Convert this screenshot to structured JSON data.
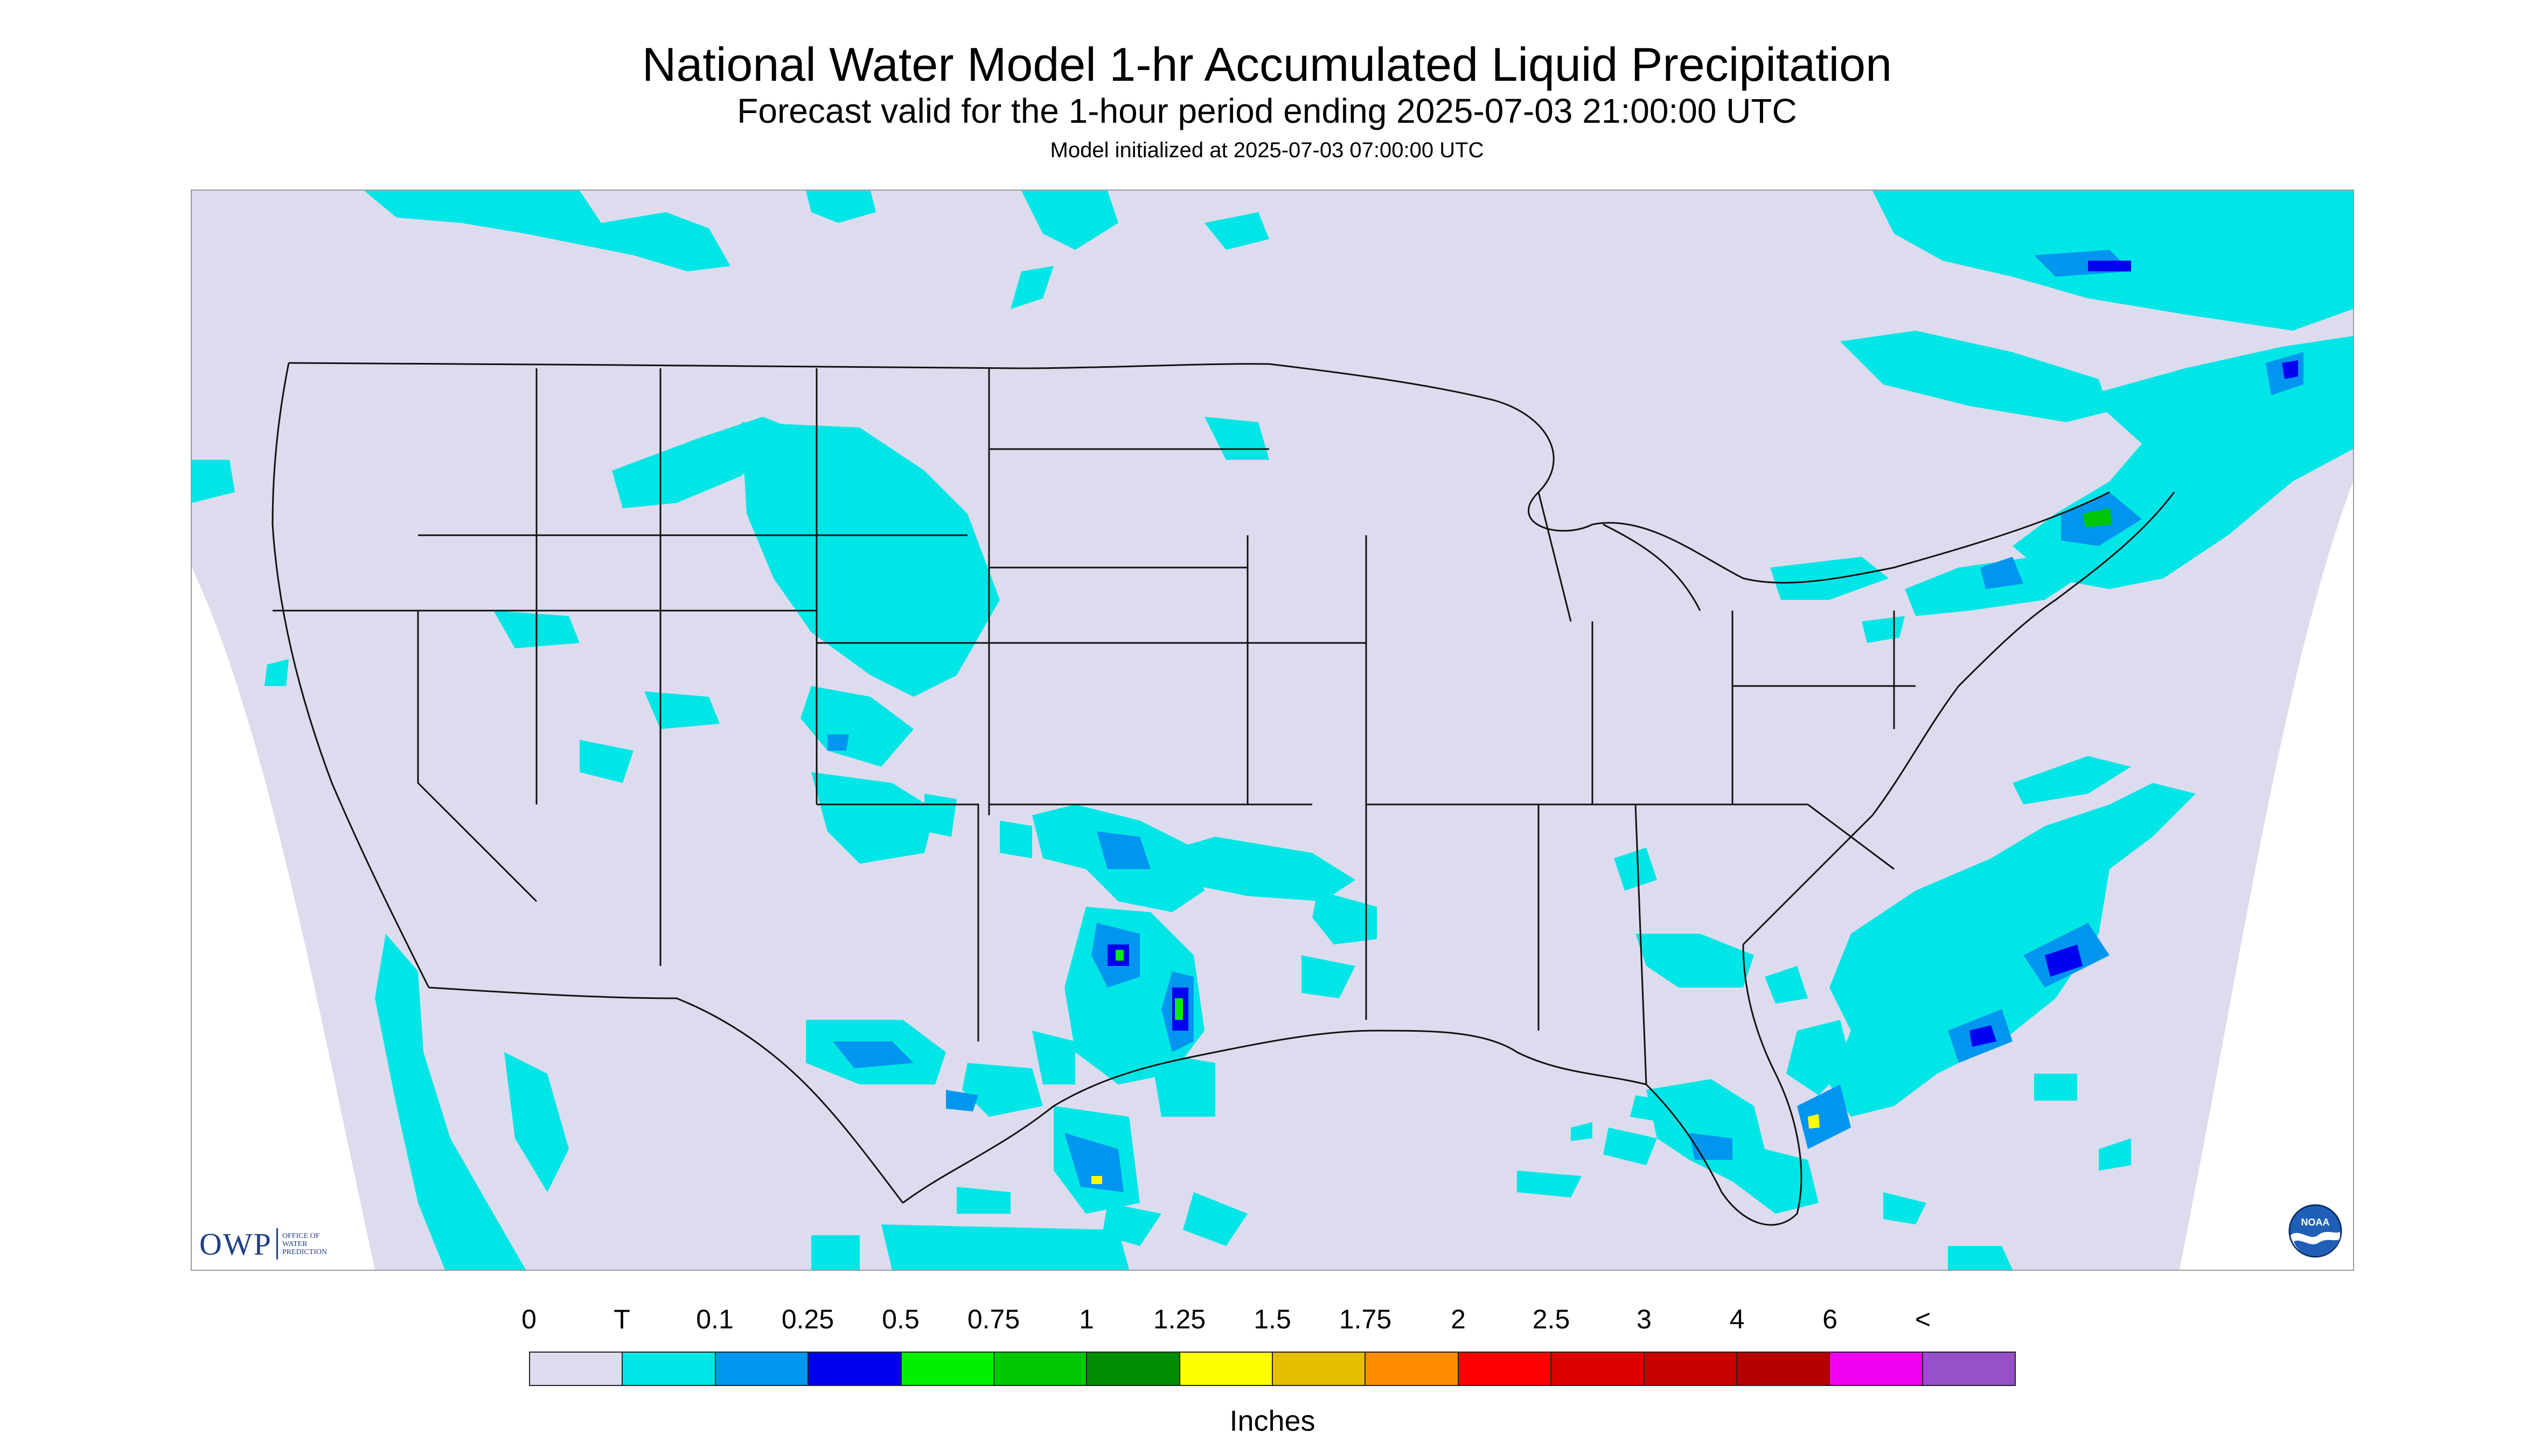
{
  "header": {
    "title": "National Water Model 1-hr Accumulated Liquid Precipitation",
    "subtitle": "Forecast valid for the 1-hour period ending 2025-07-03 21:00:00 UTC",
    "init": "Model initialized at 2025-07-03 07:00:00 UTC"
  },
  "colors": {
    "map_background": "#dcdcee",
    "outside_domain": "#ffffff",
    "boundary_lines": "#111111"
  },
  "logos": {
    "owp_text": "OWP",
    "owp_full": [
      "OFFICE OF",
      "WATER",
      "PREDICTION"
    ],
    "noaa_text": "NOAA"
  },
  "legend": {
    "units": "Inches",
    "labels": [
      "0",
      "T",
      "0.1",
      "0.25",
      "0.5",
      "0.75",
      "1",
      "1.25",
      "1.5",
      "1.75",
      "2",
      "2.5",
      "3",
      "4",
      "6",
      "<"
    ],
    "colors": [
      "#dcdcee",
      "#00e6e6",
      "#0096f0",
      "#0000f0",
      "#00f000",
      "#00c800",
      "#008c00",
      "#ffff00",
      "#e6be00",
      "#ff8c00",
      "#ff0000",
      "#dc0000",
      "#c80000",
      "#b40000",
      "#f000f0",
      "#9650c8"
    ]
  }
}
